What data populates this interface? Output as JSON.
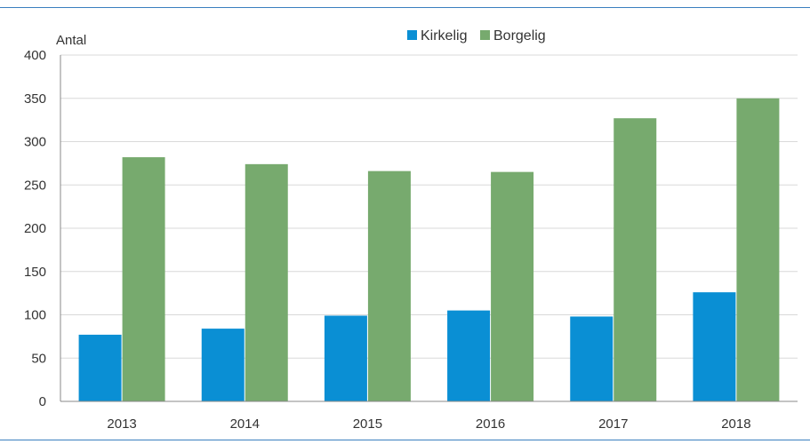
{
  "colors": {
    "kirkelig": "#0a8fd4",
    "borgelig": "#77aa6e",
    "grid": "#d9d9d9",
    "axis": "#888888",
    "rule": "#3a7fbf"
  },
  "chart_data": {
    "type": "bar",
    "title": "",
    "xlabel": "",
    "ylabel": "Antal",
    "categories": [
      "2013",
      "2014",
      "2015",
      "2016",
      "2017",
      "2018"
    ],
    "series": [
      {
        "name": "Kirkelig",
        "values": [
          77,
          84,
          99,
          105,
          98,
          126
        ]
      },
      {
        "name": "Borgelig",
        "values": [
          282,
          274,
          266,
          265,
          327,
          350
        ]
      }
    ],
    "ylim": [
      0,
      400
    ],
    "yticks": [
      0,
      50,
      100,
      150,
      200,
      250,
      300,
      350,
      400
    ],
    "grid": true,
    "legend_position": "top-center"
  }
}
